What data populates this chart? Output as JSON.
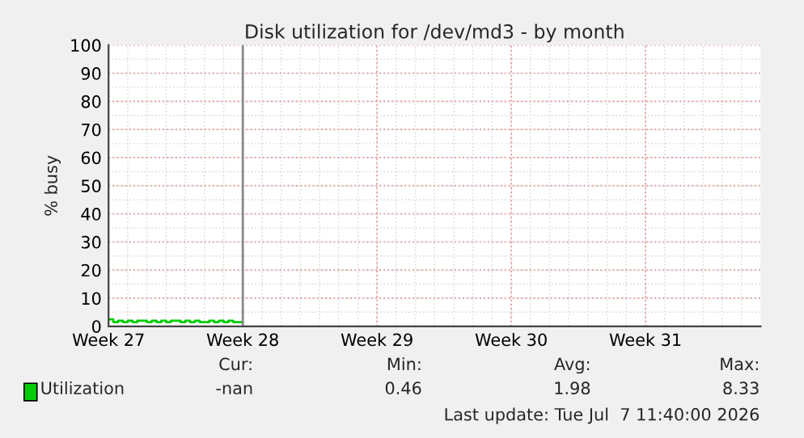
{
  "chart_data": {
    "type": "step",
    "title": "Disk utilization for /dev/md3 - by month",
    "ylabel": "% busy",
    "x": [
      "2026-06-29T00:00",
      "2026-06-29T06:00",
      "2026-06-29T12:00",
      "2026-06-29T18:00",
      "2026-06-30T00:00",
      "2026-06-30T06:00",
      "2026-06-30T12:00",
      "2026-06-30T18:00",
      "2026-07-01T00:00",
      "2026-07-01T06:00",
      "2026-07-01T12:00",
      "2026-07-01T18:00",
      "2026-07-02T00:00",
      "2026-07-02T06:00",
      "2026-07-02T12:00",
      "2026-07-02T18:00",
      "2026-07-03T00:00",
      "2026-07-03T06:00",
      "2026-07-03T12:00",
      "2026-07-03T18:00",
      "2026-07-04T00:00",
      "2026-07-04T06:00",
      "2026-07-04T12:00",
      "2026-07-04T18:00",
      "2026-07-05T00:00",
      "2026-07-05T06:00",
      "2026-07-05T12:00",
      "2026-07-05T18:00",
      "2026-07-06T00:00"
    ],
    "series": [
      {
        "name": "Utilization",
        "color": "#00cc00",
        "values": [
          2.5,
          1.5,
          2,
          1.5,
          2,
          1.5,
          2,
          2,
          1.5,
          2,
          1.5,
          2,
          1.5,
          2,
          2,
          1.5,
          2,
          1.5,
          2,
          1.5,
          1.5,
          2,
          1.5,
          2,
          1.5,
          2,
          1.5,
          1.5,
          1.5
        ]
      }
    ],
    "xlim": [
      "2026-06-29",
      "2026-08-02"
    ],
    "xticks": [
      {
        "value": "2026-06-29",
        "label": "Week 27"
      },
      {
        "value": "2026-07-06",
        "label": "Week 28"
      },
      {
        "value": "2026-07-13",
        "label": "Week 29"
      },
      {
        "value": "2026-07-20",
        "label": "Week 30"
      },
      {
        "value": "2026-07-27",
        "label": "Week 31"
      }
    ],
    "ylim": [
      0,
      100
    ],
    "yticks": [
      0,
      10,
      20,
      30,
      40,
      50,
      60,
      70,
      80,
      90,
      100
    ],
    "ref_lines": [
      {
        "axis": "x",
        "value": "2026-07-06",
        "color": "#888888"
      }
    ],
    "grid": true,
    "legend": "bottom left",
    "annotations": [
      "Cur:",
      "Min:",
      "Avg:",
      "Max:",
      "-nan",
      "0.46",
      "1.98",
      "8.33",
      "Last update: Tue Jul  7 11:40:00 2026"
    ]
  }
}
